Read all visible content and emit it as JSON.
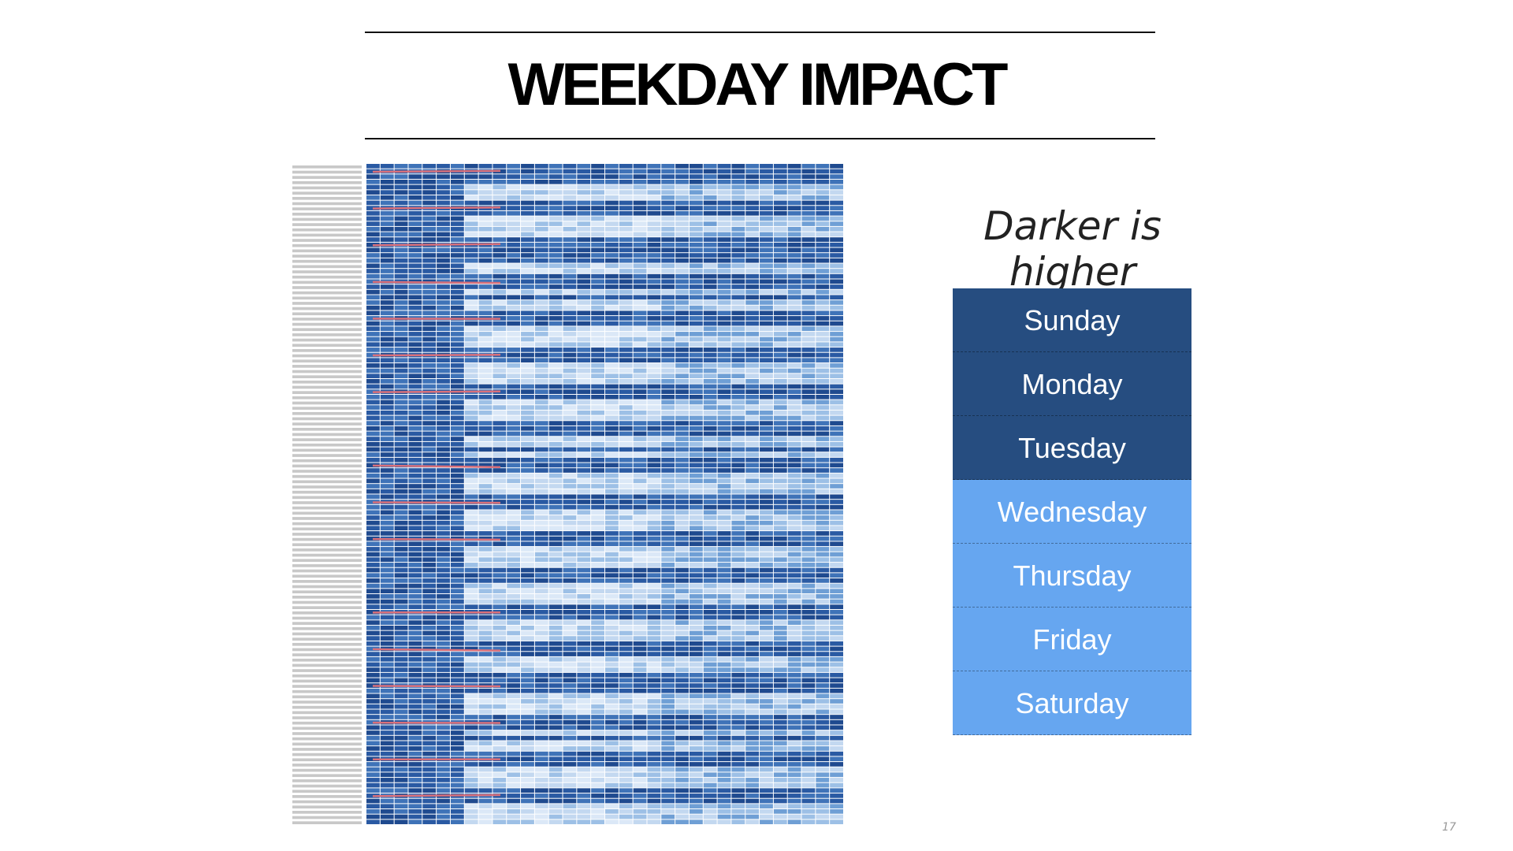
{
  "header": {
    "title": "WEEKDAY IMPACT"
  },
  "legend": {
    "caption": "Darker is higher",
    "days": [
      {
        "label": "Sunday",
        "color": "#264d80"
      },
      {
        "label": "Monday",
        "color": "#264d80"
      },
      {
        "label": "Tuesday",
        "color": "#264d80"
      },
      {
        "label": "Wednesday",
        "color": "#66a6f0"
      },
      {
        "label": "Thursday",
        "color": "#66a6f0"
      },
      {
        "label": "Friday",
        "color": "#66a6f0"
      },
      {
        "label": "Saturday",
        "color": "#66a6f0"
      }
    ]
  },
  "page_number": "17"
}
